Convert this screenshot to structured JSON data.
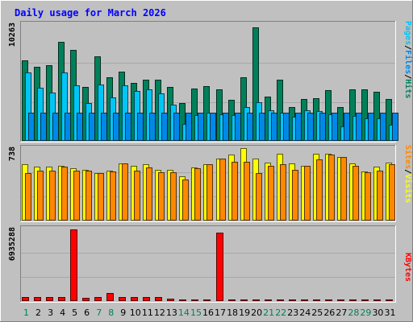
{
  "chart_data": {
    "type": "bar",
    "title": "Daily usage for March 2026",
    "categories": [
      "1",
      "2",
      "3",
      "4",
      "5",
      "6",
      "7",
      "8",
      "9",
      "10",
      "11",
      "12",
      "13",
      "14",
      "15",
      "16",
      "17",
      "18",
      "19",
      "20",
      "21",
      "22",
      "23",
      "24",
      "25",
      "26",
      "27",
      "28",
      "29",
      "30",
      "31"
    ],
    "weekend_days": [
      "1",
      "7",
      "8",
      "14",
      "15",
      "21",
      "22",
      "28",
      "29"
    ],
    "panels": [
      {
        "id": "hits",
        "ymax_label": "10263",
        "ymax": 10263,
        "axis_title": [
          "Pages",
          "Files",
          "Hits"
        ],
        "series": [
          {
            "name": "Hits",
            "color": "#00805A",
            "values": [
              7110,
              6500,
              6650,
              8700,
              8000,
              4750,
              7400,
              5600,
              6100,
              5100,
              5400,
              5400,
              4750,
              3300,
              4600,
              4800,
              4500,
              3600,
              5600,
              10000,
              3900,
              5400,
              2950,
              3650,
              3750,
              4450,
              3000,
              4500,
              4500,
              4300,
              3650
            ]
          },
          {
            "name": "Files",
            "color": "#00C6F6",
            "values": [
              6000,
              4650,
              4250,
              6050,
              4850,
              3350,
              4950,
              3800,
              4900,
              4400,
              4550,
              4200,
              3150,
              1500,
              2300,
              2450,
              2350,
              2250,
              2950,
              3400,
              2700,
              2500,
              2100,
              2700,
              2650,
              2350,
              1300,
              2200,
              1950,
              2000,
              1450
            ]
          },
          {
            "name": "Pages",
            "color": "#0088E8",
            "values": [
              2500,
              2500,
              2500,
              2500,
              2500,
              2500,
              2500,
              2500,
              2500,
              2500,
              2500,
              2500,
              2500,
              2500,
              2500,
              2500,
              2500,
              2500,
              2500,
              2500,
              2500,
              2500,
              2500,
              2500,
              2500,
              2500,
              2500,
              2500,
              2500,
              2500,
              2500
            ]
          }
        ]
      },
      {
        "id": "visits",
        "ymax_label": "738",
        "ymax": 738,
        "axis_title": [
          "Sites",
          "Visits"
        ],
        "series": [
          {
            "name": "Visits",
            "color": "#FFFF00",
            "values": [
              570,
              550,
              550,
              560,
              530,
              520,
              480,
              510,
              580,
              560,
              570,
              520,
              520,
              450,
              540,
              570,
              630,
              670,
              740,
              630,
              590,
              680,
              580,
              560,
              680,
              680,
              650,
              580,
              500,
              550,
              590
            ]
          },
          {
            "name": "Sites",
            "color": "#FF8800",
            "values": [
              480,
              510,
              510,
              550,
              510,
              510,
              480,
              500,
              580,
              510,
              540,
              490,
              490,
              420,
              530,
              570,
              630,
              600,
              600,
              480,
              560,
              570,
              520,
              560,
              620,
              670,
              650,
              560,
              490,
              510,
              570
            ]
          }
        ]
      },
      {
        "id": "kbytes",
        "ymax_label": "6935288",
        "ymax": 6935288,
        "axis_title": [
          "KBytes"
        ],
        "series": [
          {
            "name": "KBytes",
            "color": "#FF0000",
            "values": [
              420000,
              350000,
              350000,
              350000,
              6860000,
              280000,
              350000,
              770000,
              350000,
              350000,
              350000,
              350000,
              210000,
              0,
              0,
              0,
              6570000,
              0,
              0,
              0,
              0,
              0,
              0,
              0,
              0,
              0,
              0,
              0,
              0,
              0,
              0
            ]
          }
        ]
      }
    ]
  }
}
